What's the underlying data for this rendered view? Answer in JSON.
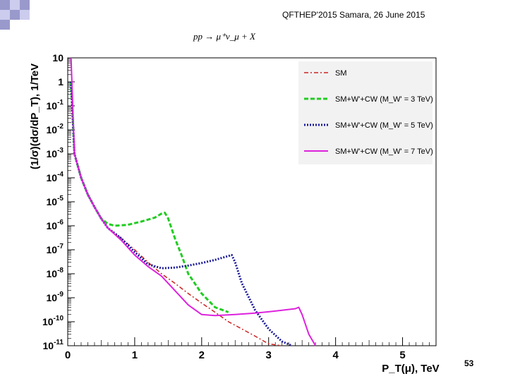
{
  "slide": {
    "header": "QFTHEP'2015 Samara,  26 June 2015",
    "page_number": "53",
    "accent_colors": [
      "#9999cc",
      "#ccccee"
    ]
  },
  "chart_data": {
    "type": "line",
    "title": "pp → μ⁺ν_μ + X",
    "xlabel": "P_T(μ), TeV",
    "ylabel": "(1/σ)(dσ/dP_T), 1/TeV",
    "xlim": [
      0,
      5.5
    ],
    "ylim_log10": [
      -11,
      1
    ],
    "y_scale": "log",
    "x_ticks": [
      0,
      1,
      2,
      3,
      4,
      5
    ],
    "x_tick_labels": [
      "0",
      "1",
      "2",
      "3",
      "4",
      "5"
    ],
    "y_ticks": [
      -11,
      -10,
      -9,
      -8,
      -7,
      -6,
      -5,
      -4,
      -3,
      -2,
      -1,
      0,
      1
    ],
    "y_tick_labels": [
      {
        "base": "10",
        "exp": "-11"
      },
      {
        "base": "10",
        "exp": "-10"
      },
      {
        "base": "10",
        "exp": "-9"
      },
      {
        "base": "10",
        "exp": "-8"
      },
      {
        "base": "10",
        "exp": "-7"
      },
      {
        "base": "10",
        "exp": "-6"
      },
      {
        "base": "10",
        "exp": "-5"
      },
      {
        "base": "10",
        "exp": "-4"
      },
      {
        "base": "10",
        "exp": "-3"
      },
      {
        "base": "10",
        "exp": "-2"
      },
      {
        "base": "10",
        "exp": "-1"
      },
      {
        "base": "1",
        "exp": ""
      },
      {
        "base": "10",
        "exp": ""
      }
    ],
    "grid": false,
    "legend_position": "top-right",
    "series": [
      {
        "name": "SM",
        "color": "#cc2222",
        "style": "dashdot",
        "x": [
          0.05,
          0.1,
          0.2,
          0.3,
          0.4,
          0.5,
          0.6,
          0.8,
          1.0,
          1.2,
          1.4,
          1.6,
          1.8,
          2.0,
          2.2,
          2.4,
          2.6,
          2.8,
          3.0,
          3.2
        ],
        "y": [
          1,
          0.001,
          0.0001,
          2e-05,
          6e-06,
          2e-06,
          8e-07,
          3e-07,
          1e-07,
          3e-08,
          1e-08,
          4e-09,
          1.5e-09,
          6e-10,
          2.5e-10,
          1e-10,
          5e-11,
          2.5e-11,
          1.2e-11,
          6e-12
        ]
      },
      {
        "name": "SM+W'+CW  (M_W' = 3 TeV)",
        "color": "#22cc22",
        "style": "dashed",
        "x": [
          0.05,
          0.1,
          0.2,
          0.3,
          0.4,
          0.5,
          0.6,
          0.7,
          0.9,
          1.1,
          1.3,
          1.4,
          1.45,
          1.5,
          1.6,
          1.7,
          1.8,
          2.0,
          2.2,
          2.4
        ],
        "y": [
          1,
          0.001,
          0.0001,
          2e-05,
          6e-06,
          2e-06,
          1.2e-06,
          1e-06,
          1.1e-06,
          1.5e-06,
          2.2e-06,
          3.2e-06,
          3.5e-06,
          2e-06,
          3e-07,
          6e-08,
          1e-08,
          1.5e-09,
          4e-10,
          2.5e-10
        ]
      },
      {
        "name": "SM+W'+CW  (M_W' = 5 TeV)",
        "color": "#1a1a99",
        "style": "dotted",
        "x": [
          0.05,
          0.1,
          0.2,
          0.3,
          0.4,
          0.5,
          0.6,
          0.8,
          1.0,
          1.2,
          1.4,
          1.6,
          1.8,
          2.0,
          2.2,
          2.35,
          2.45,
          2.5,
          2.6,
          2.8,
          3.0,
          3.2,
          3.35
        ],
        "y": [
          1,
          0.001,
          0.0001,
          2e-05,
          6e-06,
          2e-06,
          8e-07,
          3e-07,
          8e-08,
          2.5e-08,
          1.7e-08,
          1.8e-08,
          2.2e-08,
          2.8e-08,
          3.8e-08,
          5e-08,
          6e-08,
          3e-08,
          4e-09,
          3e-10,
          5e-11,
          1.5e-11,
          1e-11
        ]
      },
      {
        "name": "SM+W'+CW  (M_W' = 7 TeV)",
        "color": "#dd22dd",
        "style": "solid",
        "x": [
          0.05,
          0.1,
          0.2,
          0.3,
          0.4,
          0.5,
          0.6,
          0.8,
          1.0,
          1.2,
          1.4,
          1.6,
          1.8,
          2.0,
          2.2,
          2.5,
          2.8,
          3.0,
          3.2,
          3.4,
          3.45,
          3.5,
          3.6,
          3.7
        ],
        "y": [
          10,
          0.001,
          0.0001,
          2e-05,
          6e-06,
          2e-06,
          8e-07,
          2.5e-07,
          6e-08,
          2e-08,
          8e-09,
          2e-09,
          5e-10,
          2e-10,
          1.8e-10,
          2e-10,
          2.3e-10,
          2.6e-10,
          3e-10,
          3.5e-10,
          4e-10,
          2e-10,
          3e-11,
          1e-11
        ]
      }
    ]
  }
}
